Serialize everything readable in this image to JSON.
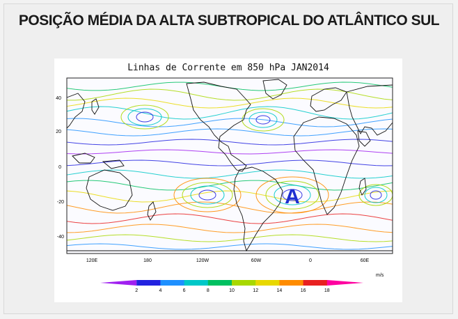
{
  "page_heading": "POSIÇÃO MÉDIA DA ALTA SUBTROPICAL DO ATLÂNTICO SUL",
  "map": {
    "title": "Linhas de Corrente em 850 hPa JAN2014",
    "lat_ticks": [
      "40",
      "20",
      "0",
      "-20",
      "-40"
    ],
    "lon_ticks": [
      "120E",
      "180",
      "120W",
      "60W",
      "0",
      "60E"
    ],
    "high_marker": "A"
  },
  "colorbar": {
    "unit": "m/s",
    "ticks": [
      "2",
      "4",
      "6",
      "8",
      "10",
      "12",
      "14",
      "16",
      "18"
    ],
    "colors": [
      "#a020f0",
      "#2222e0",
      "#1e90ff",
      "#00c8c8",
      "#00c060",
      "#a8d800",
      "#e8d800",
      "#ff8c00",
      "#e82020",
      "#ff00a0"
    ]
  }
}
